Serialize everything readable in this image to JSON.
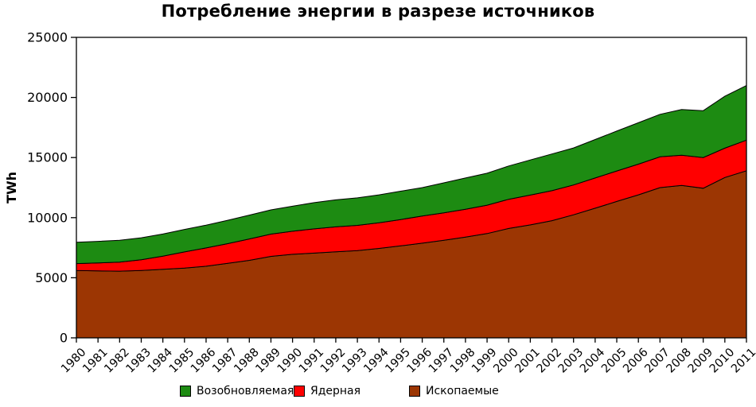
{
  "title": "Потребление энергии в разрезе источников",
  "legend": [
    {
      "label": "Возобновляемая",
      "color": "#1D8B12"
    },
    {
      "label": "Ядерная",
      "color": "#FF0000"
    },
    {
      "label": "Ископаемые",
      "color": "#9C3603"
    }
  ],
  "chart_data": {
    "type": "area",
    "stacked": true,
    "title": "Потребление энергии в разрезе источников",
    "xlabel": "",
    "ylabel": "TWh",
    "ylim": [
      0,
      25000
    ],
    "yticks": [
      0,
      5000,
      10000,
      15000,
      20000,
      25000
    ],
    "grid": false,
    "legend_position": "bottom",
    "edge_color": "#000000",
    "x": [
      "1980",
      "1981",
      "1982",
      "1983",
      "1984",
      "1985",
      "1986",
      "1987",
      "1988",
      "1989",
      "1990",
      "1991",
      "1992",
      "1993",
      "1994",
      "1995",
      "1996",
      "1997",
      "1998",
      "1999",
      "2000",
      "2001",
      "2002",
      "2003",
      "2004",
      "2005",
      "2006",
      "2007",
      "2008",
      "2009",
      "2010",
      "2011"
    ],
    "series": [
      {
        "name": "Ископаемые",
        "color": "#9C3603",
        "values": [
          5600,
          5570,
          5550,
          5610,
          5700,
          5800,
          5960,
          6200,
          6450,
          6780,
          6950,
          7050,
          7160,
          7260,
          7440,
          7650,
          7880,
          8120,
          8380,
          8680,
          9100,
          9400,
          9750,
          10240,
          10790,
          11350,
          11900,
          12500,
          12680,
          12450,
          13340,
          13900
        ]
      },
      {
        "name": "Ядерная",
        "color": "#FF0000",
        "values": [
          580,
          660,
          750,
          890,
          1090,
          1350,
          1520,
          1640,
          1780,
          1850,
          1920,
          2020,
          2070,
          2100,
          2140,
          2190,
          2260,
          2280,
          2320,
          2360,
          2430,
          2480,
          2490,
          2480,
          2510,
          2530,
          2550,
          2560,
          2520,
          2550,
          2440,
          2550
        ]
      },
      {
        "name": "Возобновляемая",
        "color": "#1D8B12",
        "values": [
          1770,
          1800,
          1820,
          1830,
          1850,
          1870,
          1900,
          1940,
          1980,
          2020,
          2080,
          2180,
          2250,
          2290,
          2320,
          2360,
          2360,
          2500,
          2600,
          2660,
          2770,
          2920,
          3060,
          3080,
          3200,
          3320,
          3450,
          3540,
          3800,
          3900,
          4320,
          4550
        ]
      }
    ]
  }
}
